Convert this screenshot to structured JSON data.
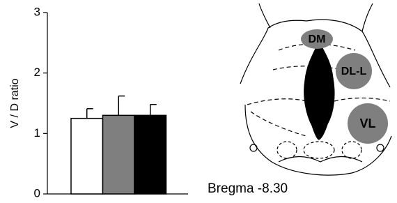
{
  "chart_data": {
    "type": "bar",
    "ylabel": "V / D ratio",
    "categories": [
      null,
      null,
      null
    ],
    "values": [
      1.25,
      1.3,
      1.3
    ],
    "errors": [
      0.16,
      0.32,
      0.18
    ],
    "colors": [
      "#ffffff",
      "#7f7f7f",
      "#000000"
    ],
    "ylim": [
      0,
      3
    ],
    "yticks": [
      0,
      1,
      2,
      3
    ]
  },
  "diagram": {
    "labels": [
      "DM",
      "DL-L",
      "VL"
    ],
    "caption": "Bregma -8.30"
  }
}
